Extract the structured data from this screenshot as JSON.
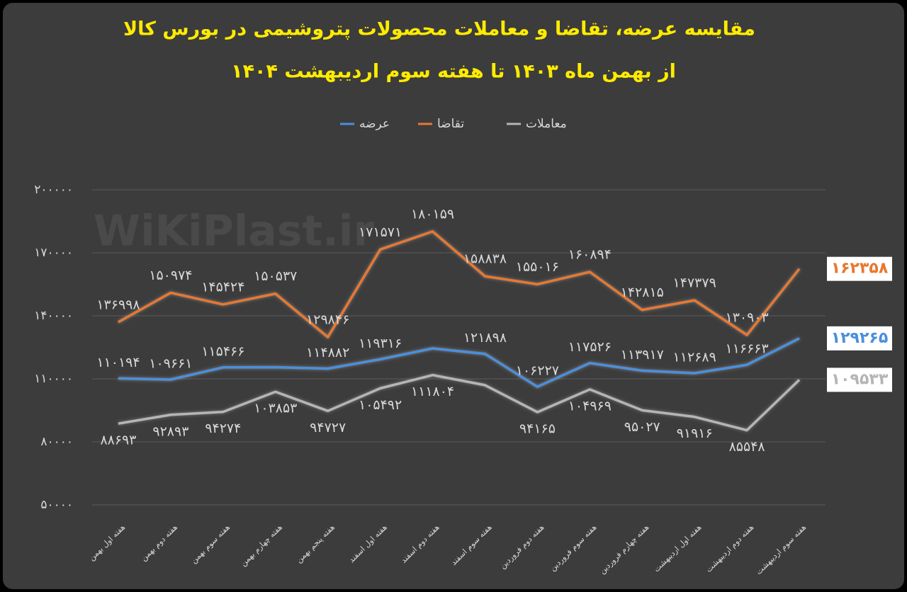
{
  "chart_data": {
    "type": "line",
    "title": "مقایسه عرضه، تقاضا و معاملات محصولات پتروشیمی در بورس کالا",
    "subtitle": "از بهمن ماه ۱۴۰۳ تا هفته سوم اردیبهشت ۱۴۰۴",
    "watermark": "WiKiPlast.ir",
    "categories": [
      "هفته اول بهمن",
      "هفته دوم بهمن",
      "هفته سوم بهمن",
      "هفته چهارم بهمن",
      "هفته پنجم بهمن",
      "هفته اول اسفند",
      "هفته دوم اسفند",
      "هفته سوم اسفند",
      "هفته دوم فروردین",
      "هفته سوم فروردین",
      "هفته چهارم فروردین",
      "هفته اول اردیبهشت",
      "هفته دوم اردیبهشت",
      "هفته سوم اردیبهشت"
    ],
    "series": [
      {
        "name": "عرضه",
        "color": "#4a8fdd",
        "values": [
          110194,
          109661,
          115466,
          115500,
          114882,
          119316,
          124500,
          121898,
          106227,
          117526,
          113917,
          112689,
          116663,
          129265
        ],
        "value_labels": [
          "۱۱۰۱۹۴",
          "۱۰۹۶۶۱",
          "۱۱۵۴۶۶",
          null,
          "۱۱۴۸۸۲",
          "۱۱۹۳۱۶",
          null,
          "۱۲۱۸۹۸",
          "۱۰۶۲۲۷",
          "۱۱۷۵۲۶",
          "۱۱۳۹۱۷",
          "۱۱۲۶۸۹",
          "۱۱۶۶۶۳",
          "۱۲۹۲۶۵"
        ]
      },
      {
        "name": "تقاضا",
        "color": "#e8772e",
        "values": [
          136998,
          150974,
          145424,
          150537,
          129846,
          171571,
          180159,
          158838,
          155016,
          160894,
          142815,
          147379,
          130903,
          162358
        ],
        "value_labels": [
          "۱۳۶۹۹۸",
          "۱۵۰۹۷۴",
          "۱۴۵۴۲۴",
          "۱۵۰۵۳۷",
          "۱۲۹۸۴۶",
          "۱۷۱۵۷۱",
          "۱۸۰۱۵۹",
          "۱۵۸۸۳۸",
          "۱۵۵۰۱۶",
          "۱۶۰۸۹۴",
          "۱۴۲۸۱۵",
          "۱۴۷۳۷۹",
          "۱۳۰۹۰۳",
          "۱۶۲۳۵۸"
        ]
      },
      {
        "name": "معاملات",
        "color": "#b5b5b5",
        "values": [
          88693,
          92893,
          94274,
          103853,
          94727,
          105492,
          111804,
          107000,
          94165,
          104969,
          95027,
          91916,
          85548,
          109533
        ],
        "value_labels": [
          "۸۸۶۹۳",
          "۹۲۸۹۳",
          "۹۴۲۷۴",
          "۱۰۳۸۵۳",
          "۹۴۷۲۷",
          "۱۰۵۴۹۲",
          "۱۱۱۸۰۴",
          null,
          "۹۴۱۶۵",
          "۱۰۴۹۶۹",
          "۹۵۰۲۷",
          "۹۱۹۱۶",
          "۸۵۵۴۸",
          "۱۰۹۵۳۳"
        ]
      }
    ],
    "ylim": [
      50000,
      200000
    ],
    "yticks": [
      {
        "value": 50000,
        "label": "۵۰۰۰۰"
      },
      {
        "value": 80000,
        "label": "۸۰۰۰۰"
      },
      {
        "value": 110000,
        "label": "۱۱۰۰۰۰"
      },
      {
        "value": 140000,
        "label": "۱۴۰۰۰۰"
      },
      {
        "value": 170000,
        "label": "۱۷۰۰۰۰"
      },
      {
        "value": 200000,
        "label": "۲۰۰۰۰۰"
      }
    ],
    "grid": true
  }
}
